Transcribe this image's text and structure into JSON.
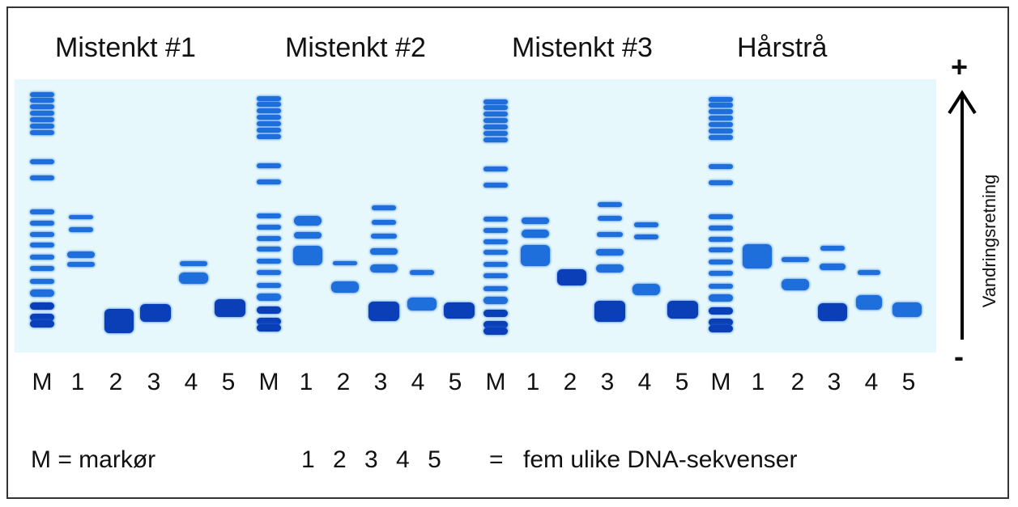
{
  "title_groups": [
    "Mistenkt #1",
    "Mistenkt #2",
    "Mistenkt #3",
    "Hårstrå"
  ],
  "lane_labels": [
    "M",
    "1",
    "2",
    "3",
    "4",
    "5"
  ],
  "direction": {
    "plus": "+",
    "minus": "-",
    "label": "Vandringsretning"
  },
  "legend": {
    "marker": "M = markør",
    "numbers": "1  2  3  4  5",
    "equals": "=",
    "description": "fem ulike DNA-sekvenser"
  },
  "colors": {
    "gel_background": "#e6f8fc",
    "band": "#1e6fdc",
    "band_dark": "#0b3fb8"
  }
}
